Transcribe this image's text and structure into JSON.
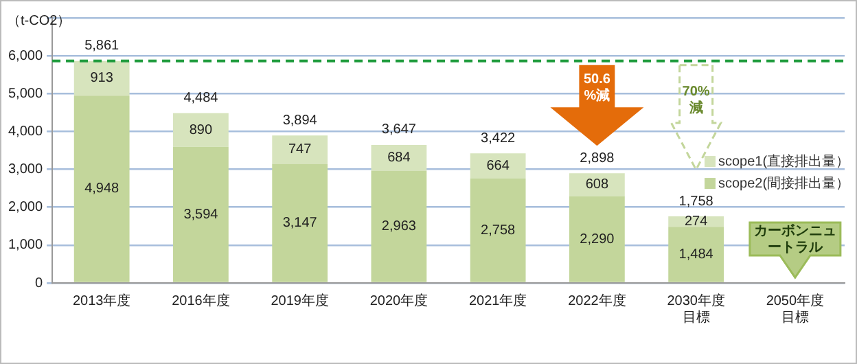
{
  "chart_data": {
    "type": "bar",
    "stacked": true,
    "ylabel": "（t-CO2）",
    "categories": [
      "2013年度",
      "2016年度",
      "2019年度",
      "2020年度",
      "2021年度",
      "2022年度",
      "2030年度目標",
      "2050年度目標"
    ],
    "series": [
      {
        "name": "scope2(間接排出量）",
        "color": "#c3d69b",
        "values": [
          4948,
          3594,
          3147,
          2963,
          2758,
          2290,
          1484,
          null
        ],
        "value_labels": [
          "4,948",
          "3,594",
          "3,147",
          "2,963",
          "2,758",
          "2,290",
          "1,484",
          null
        ]
      },
      {
        "name": "scope1(直接排出量）",
        "color": "#d7e4bd",
        "values": [
          913,
          890,
          747,
          684,
          664,
          608,
          274,
          null
        ],
        "value_labels": [
          "913",
          "890",
          "747",
          "684",
          "664",
          "608",
          "274",
          null
        ]
      }
    ],
    "totals": [
      "5,861",
      "4,484",
      "3,894",
      "3,647",
      "3,422",
      "2,898",
      "1,758",
      null
    ],
    "ylim": [
      0,
      7000
    ],
    "yticks": [
      0,
      {
        "value": 1000,
        "label": "1,000"
      },
      {
        "value": 2000,
        "label": "2,000"
      },
      {
        "value": 3000,
        "label": "3,000"
      },
      {
        "value": 4000,
        "label": "4,000"
      },
      {
        "value": 5000,
        "label": "5,000"
      },
      {
        "value": 6000,
        "label": "6,000"
      },
      {
        "value": 7000,
        "label": null
      }
    ],
    "grid": "y",
    "legend": "right",
    "ref_lines": [
      {
        "axis": "y",
        "value": 5861,
        "color": "#1e9b3c",
        "line_style": "dashed"
      }
    ],
    "annotations": [
      "50.6%減",
      "70%減",
      "カーボンニュートラル"
    ]
  }
}
